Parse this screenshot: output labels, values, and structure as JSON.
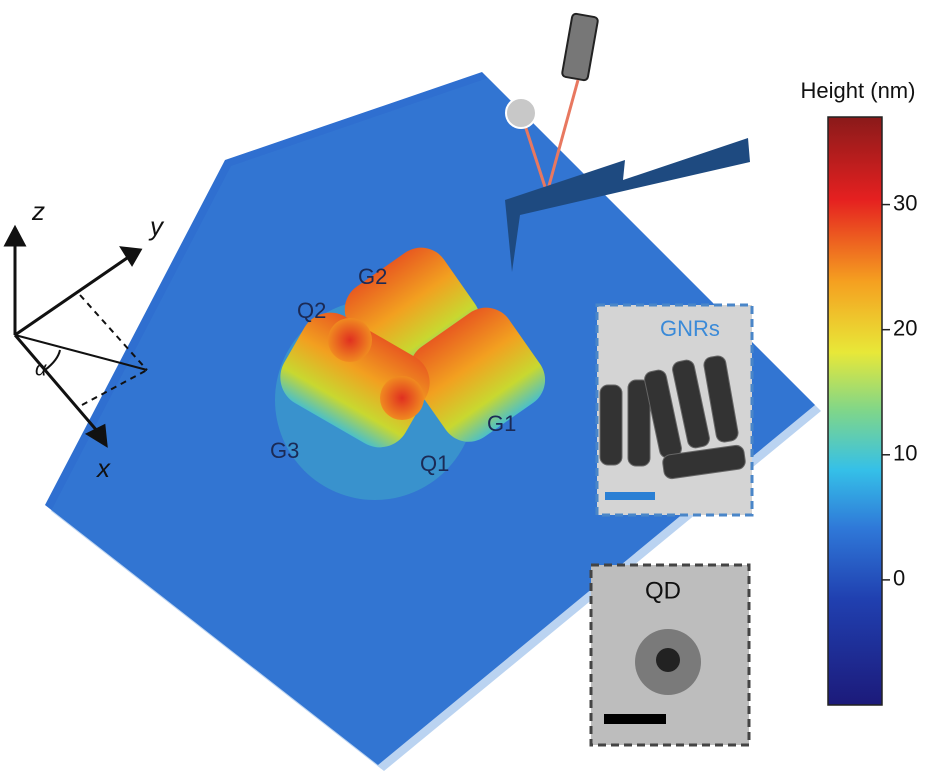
{
  "colorbar": {
    "label": "Height (nm)",
    "lim": [
      -10,
      37
    ],
    "ticks": [
      0,
      10,
      20,
      30
    ]
  },
  "axes": {
    "z": "z",
    "y": "y",
    "x": "x",
    "angle": "α"
  },
  "particles": {
    "G1": "G1",
    "G2": "G2",
    "G3": "G3",
    "Q1": "Q1",
    "Q2": "Q2"
  },
  "insets": {
    "gnrs": "GNRs",
    "qd": "QD"
  }
}
